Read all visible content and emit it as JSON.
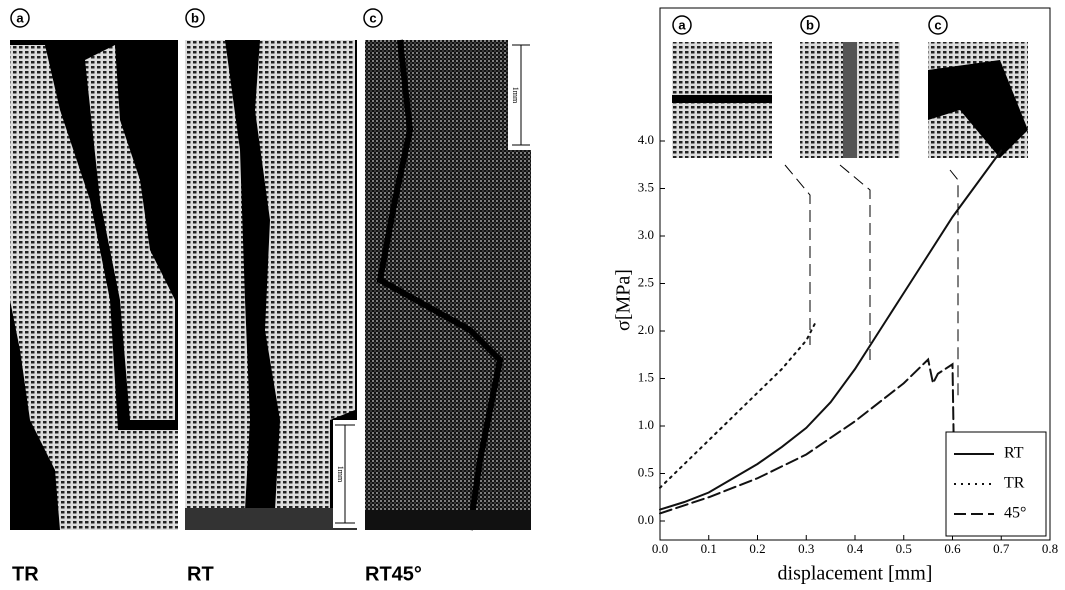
{
  "figure": {
    "panels": [
      {
        "letter": "a",
        "caption": "TR"
      },
      {
        "letter": "b",
        "caption": "RT"
      },
      {
        "letter": "c",
        "caption": "RT45°"
      }
    ],
    "scale_label": "1mm"
  },
  "chart_data": {
    "type": "line",
    "xlabel": "displacement [mm]",
    "ylabel": "σ[MPa]",
    "inset_labels": [
      "a",
      "b",
      "c"
    ],
    "xlim": [
      0,
      0.8
    ],
    "xticks": [
      {
        "value": 0,
        "label": "0.0"
      },
      0.1,
      0.2,
      0.3,
      0.4,
      0.5,
      0.6,
      0.7,
      0.8
    ],
    "ylim": [
      -0.2,
      5.4
    ],
    "yticks": [
      {
        "value": 0,
        "label": "0.0"
      },
      0.5,
      {
        "value": 1,
        "label": "1.0"
      },
      1.5,
      {
        "value": 2,
        "label": "2.0"
      },
      2.5,
      {
        "value": 3,
        "label": "3.0"
      },
      3.5,
      {
        "value": 4,
        "label": "4.0"
      }
    ],
    "legend": "lower right",
    "series": [
      {
        "name": "RT",
        "color": "#111111",
        "dash": "solid",
        "x": [
          0,
          0.05,
          0.1,
          0.15,
          0.2,
          0.25,
          0.3,
          0.35,
          0.4,
          0.45,
          0.5,
          0.55,
          0.6,
          0.65,
          0.7
        ],
        "values": [
          0.12,
          0.2,
          0.3,
          0.45,
          0.6,
          0.78,
          0.98,
          1.25,
          1.6,
          2.0,
          2.4,
          2.8,
          3.2,
          3.55,
          3.9
        ]
      },
      {
        "name": "TR",
        "color": "#111111",
        "dash": "dotted",
        "x": [
          0,
          0.05,
          0.1,
          0.15,
          0.2,
          0.25,
          0.3,
          0.32
        ],
        "values": [
          0.35,
          0.6,
          0.85,
          1.1,
          1.35,
          1.6,
          1.9,
          2.1
        ]
      },
      {
        "name": "45°",
        "color": "#111111",
        "dash": "dashed",
        "x": [
          0,
          0.1,
          0.2,
          0.3,
          0.4,
          0.5,
          0.55,
          0.56,
          0.57,
          0.6,
          0.605
        ],
        "values": [
          0.08,
          0.25,
          0.45,
          0.7,
          1.05,
          1.45,
          1.7,
          1.45,
          1.55,
          1.65,
          0
        ]
      }
    ]
  }
}
